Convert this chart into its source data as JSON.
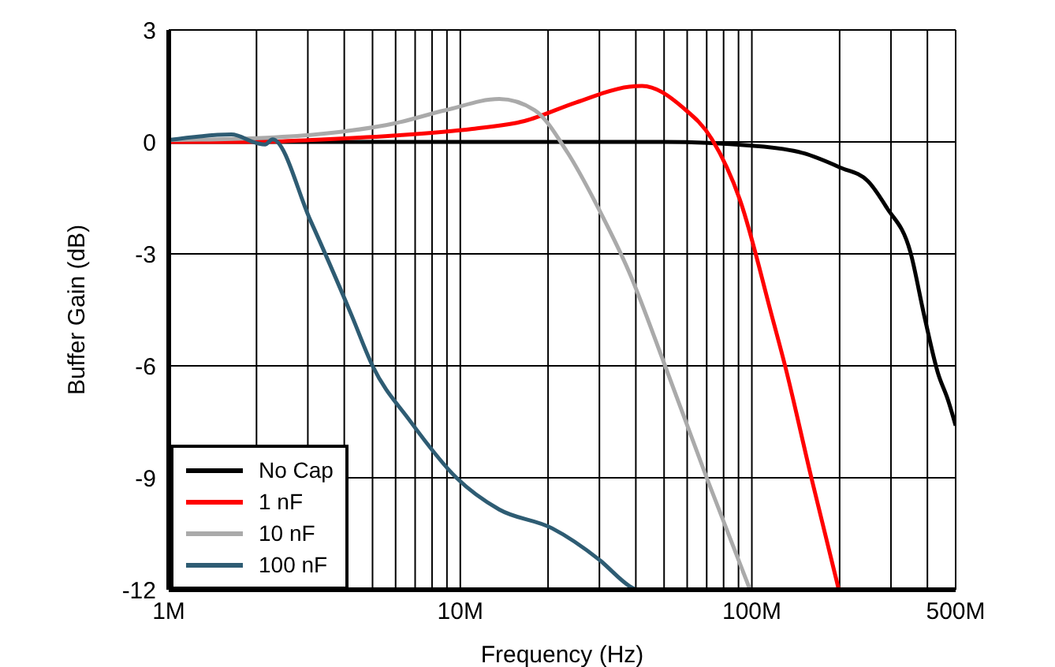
{
  "chart_data": {
    "type": "line",
    "xlabel": "Frequency (Hz)",
    "ylabel": "Buffer Gain (dB)",
    "log": "x",
    "grid": true,
    "legend": "bottom left",
    "marker": "none",
    "line_style": "solid",
    "xlim": [
      1000000,
      500000000
    ],
    "ylim": [
      -12,
      3
    ],
    "yticks": [
      3,
      0,
      -3,
      -6,
      -9,
      -12
    ],
    "xticks": [
      {
        "value": 1000000,
        "label": "1M"
      },
      {
        "value": 2000000,
        "label": null
      },
      {
        "value": 3000000,
        "label": null
      },
      {
        "value": 4000000,
        "label": null
      },
      {
        "value": 5000000,
        "label": null
      },
      {
        "value": 6000000,
        "label": null
      },
      {
        "value": 7000000,
        "label": null
      },
      {
        "value": 8000000,
        "label": null
      },
      {
        "value": 9000000,
        "label": null
      },
      {
        "value": 10000000,
        "label": "10M"
      },
      {
        "value": 20000000,
        "label": null
      },
      {
        "value": 30000000,
        "label": null
      },
      {
        "value": 40000000,
        "label": null
      },
      {
        "value": 50000000,
        "label": null
      },
      {
        "value": 60000000,
        "label": null
      },
      {
        "value": 70000000,
        "label": null
      },
      {
        "value": 80000000,
        "label": null
      },
      {
        "value": 90000000,
        "label": null
      },
      {
        "value": 100000000,
        "label": "100M"
      },
      {
        "value": 200000000,
        "label": null
      },
      {
        "value": 300000000,
        "label": null
      },
      {
        "value": 400000000,
        "label": null
      },
      {
        "value": 500000000,
        "label": "500M"
      }
    ],
    "series": [
      {
        "name": "No Cap",
        "color": "#000000",
        "x": [
          1000000,
          10000000,
          50000000,
          100000000,
          150000000,
          200000000,
          250000000,
          290000000,
          350000000,
          390000000,
          435000000,
          470000000,
          500000000
        ],
        "values": [
          0,
          0,
          0,
          -0.1,
          -0.3,
          -0.68,
          -1.05,
          -1.76,
          -2.96,
          -4.65,
          -6.2,
          -6.9,
          -7.6
        ]
      },
      {
        "name": "1 nF",
        "color": "#ff0000",
        "x": [
          1000000,
          2000000,
          3000000,
          5900000,
          11000000,
          16600000,
          25000000,
          38000000,
          42000000,
          58000000,
          73000000,
          91000000,
          117000000,
          130000000,
          160000000,
          198000000
        ],
        "values": [
          0,
          0,
          0.05,
          0.17,
          0.35,
          0.56,
          1.06,
          1.48,
          1.5,
          0.92,
          0.07,
          -1.55,
          -4.65,
          -6.0,
          -9.0,
          -11.95
        ]
      },
      {
        "name": "10 nF",
        "color": "#aaaaaa",
        "x": [
          1000000,
          2000000,
          3200000,
          5900000,
          8900000,
          13600000,
          18000000,
          23300000,
          30000000,
          38000000,
          50400000,
          70000000,
          98000000
        ],
        "values": [
          0.05,
          0.1,
          0.2,
          0.49,
          0.85,
          1.15,
          0.85,
          -0.28,
          -1.83,
          -3.5,
          -6.0,
          -9.0,
          -11.95
        ]
      },
      {
        "name": "100 nF",
        "color": "#2e5c73",
        "x": [
          1000000,
          1640000,
          2000000,
          2140000,
          2270000,
          3060000,
          4240000,
          5000000,
          6700000,
          9700000,
          13600000,
          20600000,
          30000000,
          38000000,
          40000000
        ],
        "values": [
          0.05,
          0.2,
          -0.03,
          -0.07,
          0.07,
          -2.1,
          -4.65,
          -6.0,
          -7.46,
          -9.0,
          -9.85,
          -10.35,
          -11.2,
          -11.9,
          -12
        ]
      }
    ]
  }
}
